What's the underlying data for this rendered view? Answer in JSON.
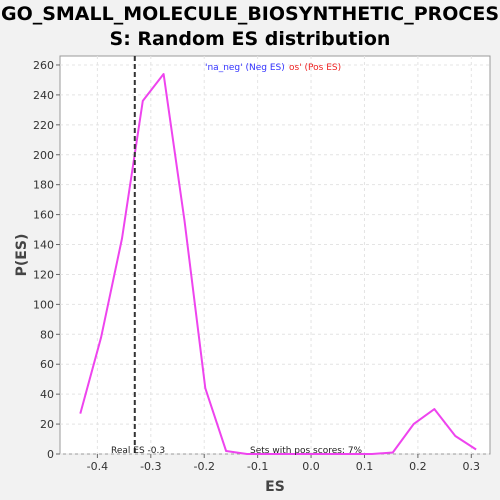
{
  "title_line1": "GO_SMALL_MOLECULE_BIOSYNTHETIC_PROCES",
  "title_line2": "S: Random ES distribution",
  "colors": {
    "line": "#ee44ee",
    "neg": "#3333ff",
    "pos": "#ee2222",
    "marker": "#333333"
  },
  "chart_data": {
    "type": "line",
    "xlabel": "ES",
    "ylabel": "P(ES)",
    "xlim": [
      -0.47,
      0.335
    ],
    "ylim": [
      0,
      266
    ],
    "xticks": [
      -0.4,
      -0.3,
      -0.2,
      -0.1,
      0.0,
      0.1,
      0.2,
      0.3
    ],
    "xtick_labels": [
      "-0.4",
      "-0.3",
      "-0.2",
      "-0.1",
      "0.0",
      "0.1",
      "0.2",
      "0.3"
    ],
    "yticks": [
      0,
      20,
      40,
      60,
      80,
      100,
      120,
      140,
      160,
      180,
      200,
      220,
      240,
      260
    ],
    "yrick_note": "",
    "grid": true,
    "series": [
      {
        "x": [
          -0.432,
          -0.393,
          -0.354,
          -0.315,
          -0.276,
          -0.237,
          -0.198,
          -0.159,
          -0.12,
          -0.081,
          -0.042,
          -0.003,
          0.036,
          0.075,
          0.114,
          0.153,
          0.192,
          0.231,
          0.27,
          0.309
        ],
        "y": [
          27,
          78,
          144,
          236,
          254,
          156,
          44,
          2,
          0,
          0,
          0,
          0,
          0,
          0,
          0,
          1,
          20,
          30,
          12,
          3
        ]
      }
    ],
    "real_es": -0.33,
    "legend_neg": "'na_neg' (Neg ES)",
    "legend_pos": "os' (Pos ES)",
    "real_es_label": "Real ES -0.3",
    "pos_scores_label": "Sets with pos scores: 7%"
  }
}
